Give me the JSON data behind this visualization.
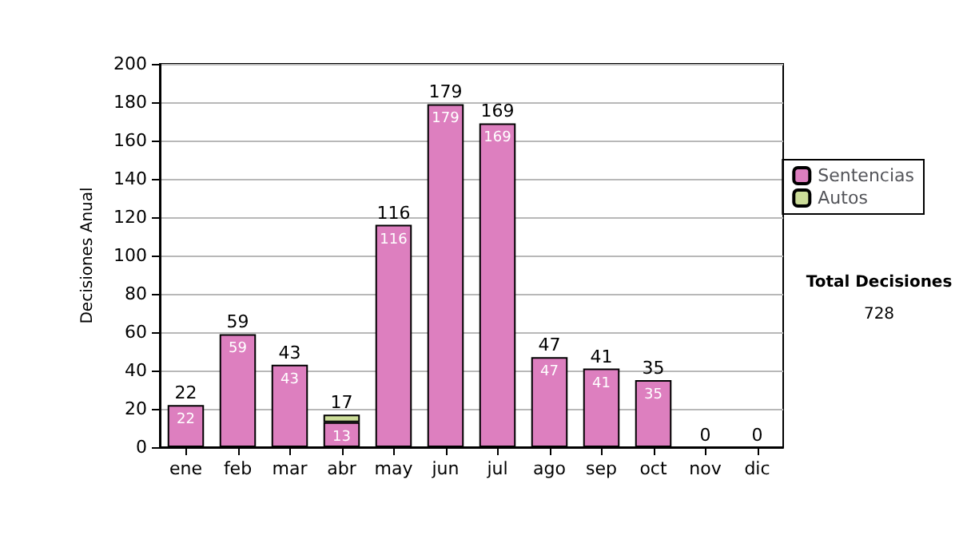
{
  "chart_data": {
    "type": "bar",
    "stacked": true,
    "ylabel": "Decisiones Anual",
    "categories": [
      "ene",
      "feb",
      "mar",
      "abr",
      "may",
      "jun",
      "jul",
      "ago",
      "sep",
      "oct",
      "nov",
      "dic"
    ],
    "series": [
      {
        "name": "Sentencias",
        "color": "#dd7fbf",
        "values": [
          22,
          59,
          43,
          13,
          116,
          179,
          169,
          47,
          41,
          35,
          0,
          0
        ],
        "value_labels": [
          "22",
          "59",
          "43",
          "13",
          "116",
          "179",
          "169",
          "47",
          "41",
          "35",
          null,
          null
        ]
      },
      {
        "name": "Autos",
        "color": "#ccdd99",
        "values": [
          0,
          0,
          0,
          4,
          0,
          0,
          0,
          0,
          0,
          0,
          0,
          0
        ]
      }
    ],
    "totals": [
      "22",
      "59",
      "43",
      "17",
      "116",
      "179",
      "169",
      "47",
      "41",
      "35",
      "0",
      "0"
    ],
    "ylim": [
      0,
      200
    ],
    "yticks": [
      0,
      20,
      40,
      60,
      80,
      100,
      120,
      140,
      160,
      180,
      200
    ],
    "grid": "y",
    "legend": "right",
    "annotations": [
      "Total Decisiones",
      "728"
    ]
  }
}
